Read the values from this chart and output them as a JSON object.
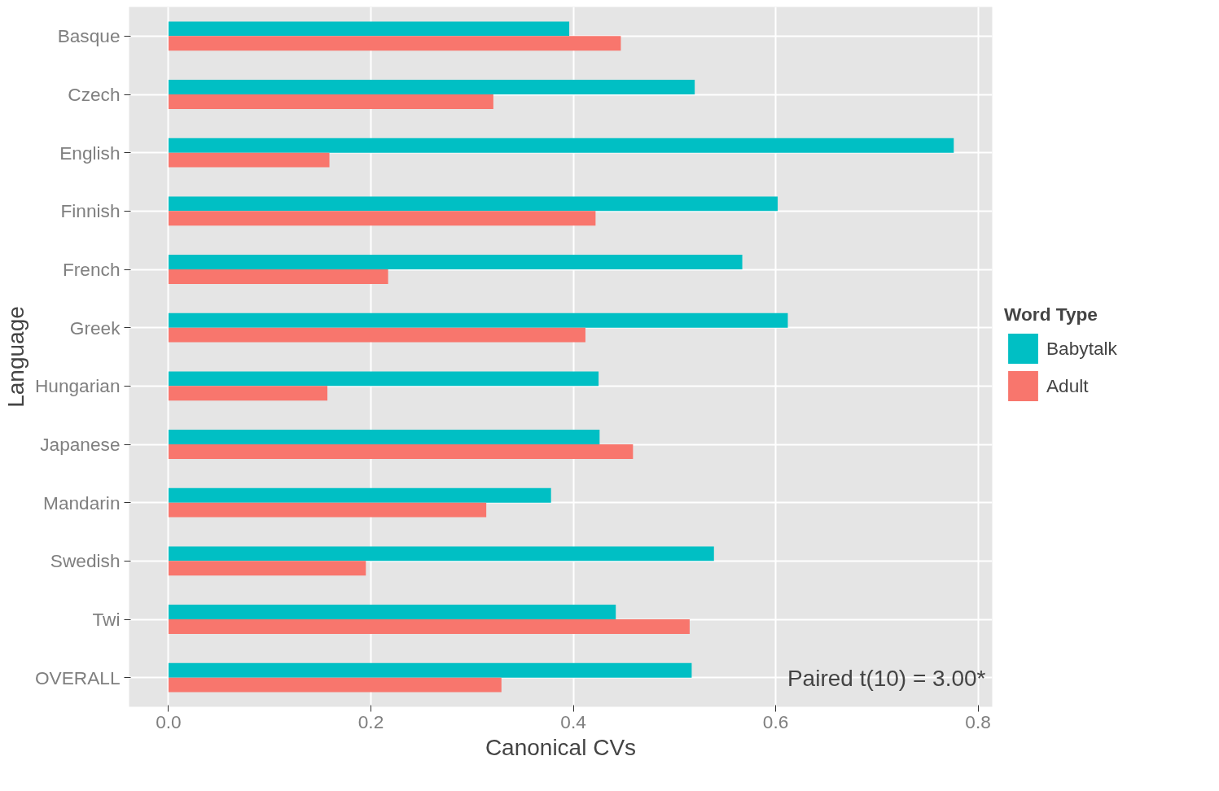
{
  "chart_data": {
    "type": "bar",
    "orientation": "horizontal",
    "xlabel": "Canonical CVs",
    "ylabel": "Language",
    "legend_title": "Word Type",
    "categories": [
      "Basque",
      "Czech",
      "English",
      "Finnish",
      "French",
      "Greek",
      "Hungarian",
      "Japanese",
      "Mandarin",
      "Swedish",
      "Twi",
      "OVERALL"
    ],
    "series": [
      {
        "name": "Babytalk",
        "color": "#00bfc4",
        "values": [
          0.396,
          0.52,
          0.776,
          0.602,
          0.567,
          0.612,
          0.425,
          0.426,
          0.378,
          0.539,
          0.442,
          0.517
        ]
      },
      {
        "name": "Adult",
        "color": "#f8766d",
        "values": [
          0.447,
          0.321,
          0.159,
          0.422,
          0.217,
          0.412,
          0.157,
          0.459,
          0.314,
          0.195,
          0.515,
          0.329
        ]
      }
    ],
    "xlim": [
      -0.039,
      0.814
    ],
    "xticks": [
      {
        "value": 0,
        "label": "0.0"
      },
      0.2,
      0.4,
      0.6,
      0.8
    ],
    "grid": true,
    "legend": "right",
    "annotations": [
      "Paired t(10) = 3.00*"
    ]
  }
}
